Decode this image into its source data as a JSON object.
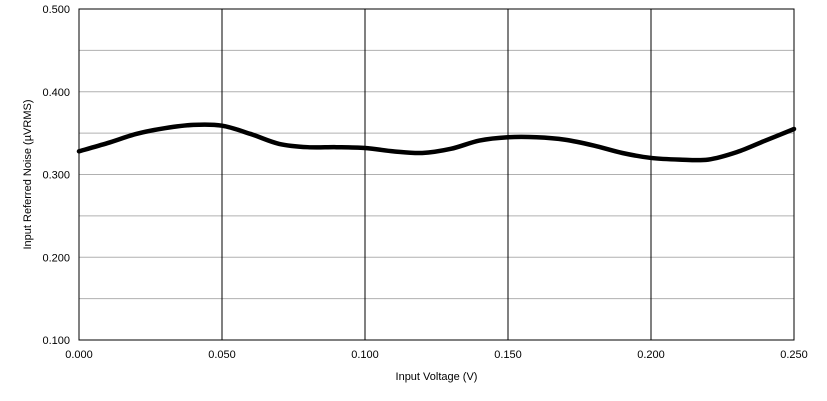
{
  "chart_data": {
    "type": "line",
    "title": "",
    "xlabel": "Input  Voltage (V)",
    "ylabel": "Input Referred Noise (µVRMS)",
    "xlim": [
      0.0,
      0.25
    ],
    "ylim": [
      0.1,
      0.5
    ],
    "x_ticks": [
      "0.000",
      "0.050",
      "0.100",
      "0.150",
      "0.200",
      "0.250"
    ],
    "y_ticks": [
      "0.500",
      "0.400",
      "0.300",
      "0.200",
      "0.100"
    ],
    "grid": {
      "horizontal_step": 0.05,
      "vertical_step": 0.05
    },
    "series": [
      {
        "x": [
          0.0,
          0.01,
          0.02,
          0.03,
          0.04,
          0.05,
          0.06,
          0.07,
          0.08,
          0.09,
          0.1,
          0.11,
          0.12,
          0.13,
          0.14,
          0.15,
          0.16,
          0.17,
          0.18,
          0.19,
          0.2,
          0.21,
          0.22,
          0.23,
          0.24,
          0.25
        ],
        "y": [
          0.328,
          0.338,
          0.349,
          0.356,
          0.36,
          0.359,
          0.349,
          0.337,
          0.333,
          0.333,
          0.332,
          0.328,
          0.326,
          0.331,
          0.341,
          0.345,
          0.345,
          0.342,
          0.335,
          0.326,
          0.32,
          0.318,
          0.318,
          0.327,
          0.341,
          0.355
        ],
        "color": "#000000"
      }
    ]
  }
}
